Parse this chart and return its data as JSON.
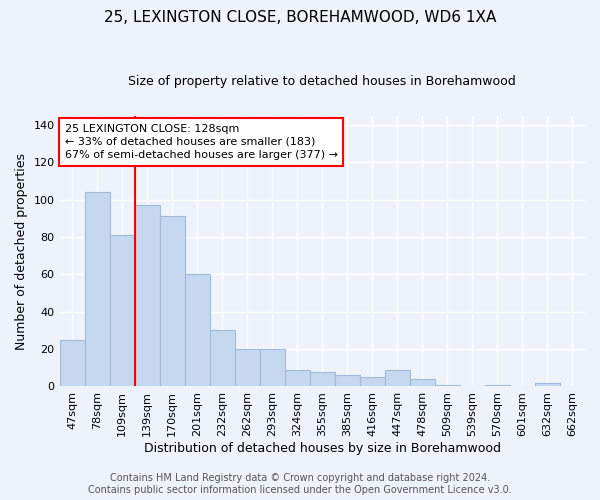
{
  "title": "25, LEXINGTON CLOSE, BOREHAMWOOD, WD6 1XA",
  "subtitle": "Size of property relative to detached houses in Borehamwood",
  "xlabel": "Distribution of detached houses by size in Borehamwood",
  "ylabel": "Number of detached properties",
  "categories": [
    "47sqm",
    "78sqm",
    "109sqm",
    "139sqm",
    "170sqm",
    "201sqm",
    "232sqm",
    "262sqm",
    "293sqm",
    "324sqm",
    "355sqm",
    "385sqm",
    "416sqm",
    "447sqm",
    "478sqm",
    "509sqm",
    "539sqm",
    "570sqm",
    "601sqm",
    "632sqm",
    "662sqm"
  ],
  "values": [
    25,
    104,
    81,
    97,
    91,
    60,
    30,
    20,
    20,
    9,
    8,
    6,
    5,
    9,
    4,
    1,
    0,
    1,
    0,
    2,
    0
  ],
  "bar_color": "#c5d8ef",
  "bar_edge_color": "#a0bcda",
  "vline_x_pos": 2.5,
  "vline_color": "red",
  "ylim": [
    0,
    145
  ],
  "yticks": [
    0,
    20,
    40,
    60,
    80,
    100,
    120,
    140
  ],
  "annotation_line1": "25 LEXINGTON CLOSE: 128sqm",
  "annotation_line2": "← 33% of detached houses are smaller (183)",
  "annotation_line3": "67% of semi-detached houses are larger (377) →",
  "footer_line1": "Contains HM Land Registry data © Crown copyright and database right 2024.",
  "footer_line2": "Contains public sector information licensed under the Open Government Licence v3.0.",
  "background_color": "#eef2fb",
  "grid_color": "#ffffff",
  "title_fontsize": 11,
  "subtitle_fontsize": 9,
  "axis_label_fontsize": 9,
  "tick_fontsize": 8,
  "annotation_fontsize": 8,
  "footer_fontsize": 7
}
